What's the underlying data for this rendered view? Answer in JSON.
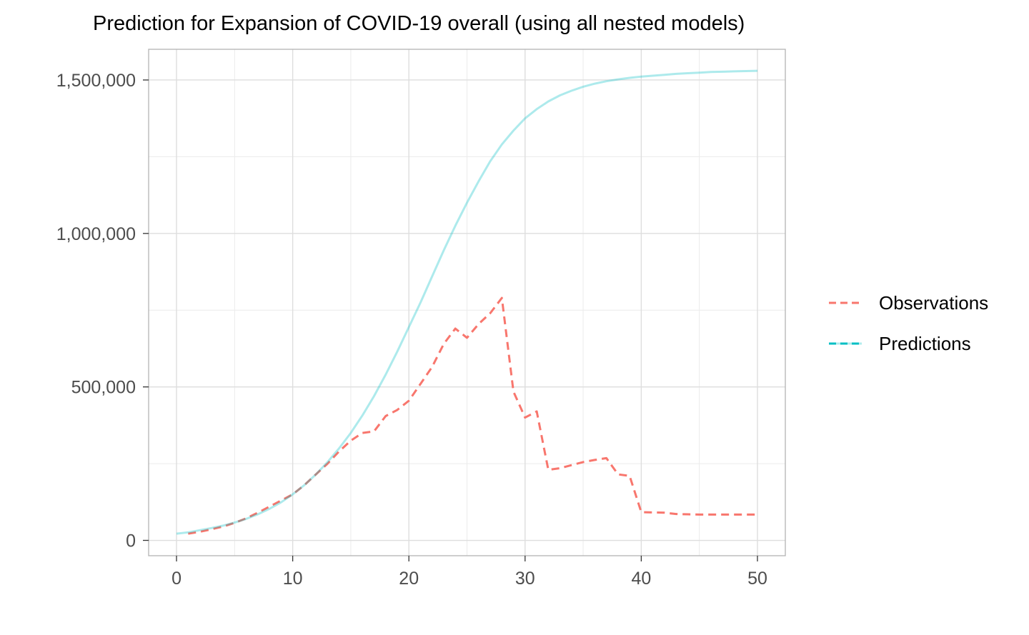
{
  "chart_data": {
    "type": "line",
    "title": "Prediction for Expansion of COVID-19 overall (using all nested models)",
    "xlabel": "",
    "ylabel": "",
    "xlim": [
      -2.4,
      52.4
    ],
    "ylim": [
      -50000,
      1600000
    ],
    "x_ticks": [
      0,
      10,
      20,
      30,
      40,
      50
    ],
    "x_tick_labels": [
      "0",
      "10",
      "20",
      "30",
      "40",
      "50"
    ],
    "y_ticks": [
      0,
      500000,
      1000000,
      1500000
    ],
    "y_tick_labels": [
      "0",
      "500,000",
      "1,000,000",
      "1,500,000"
    ],
    "grid": true,
    "legend_position": "right",
    "series": [
      {
        "name": "Observations",
        "color": "#F8766D",
        "line_style": "dashed",
        "x": [
          1,
          2,
          3,
          4,
          5,
          6,
          7,
          8,
          9,
          10,
          11,
          12,
          13,
          14,
          15,
          16,
          17,
          18,
          19,
          20,
          21,
          22,
          23,
          24,
          25,
          26,
          27,
          28,
          29,
          30,
          31,
          32,
          33,
          34,
          35,
          36,
          37,
          38,
          39,
          40,
          41,
          42,
          43,
          44,
          45,
          46,
          47,
          48,
          49,
          50
        ],
        "y": [
          22000,
          28000,
          36000,
          45000,
          57000,
          72000,
          90000,
          110000,
          130000,
          150000,
          180000,
          215000,
          250000,
          290000,
          325000,
          350000,
          355000,
          405000,
          425000,
          455000,
          510000,
          565000,
          640000,
          690000,
          660000,
          705000,
          740000,
          790000,
          485000,
          400000,
          420000,
          230000,
          235000,
          245000,
          255000,
          262000,
          268000,
          215000,
          210000,
          92000,
          91000,
          90000,
          86000,
          85000,
          84000,
          84000,
          84000,
          84000,
          84000,
          84000
        ]
      },
      {
        "name": "Predictions",
        "color": "#00BFC4",
        "line_style": "solid",
        "x": [
          0,
          1,
          2,
          3,
          4,
          5,
          6,
          7,
          8,
          9,
          10,
          11,
          12,
          13,
          14,
          15,
          16,
          17,
          18,
          19,
          20,
          21,
          22,
          23,
          24,
          25,
          26,
          27,
          28,
          29,
          30,
          31,
          32,
          33,
          34,
          35,
          36,
          37,
          38,
          39,
          40,
          41,
          42,
          43,
          44,
          45,
          46,
          47,
          48,
          49,
          50
        ],
        "y": [
          22000,
          26000,
          33000,
          40000,
          48000,
          58000,
          70000,
          85000,
          103000,
          124000,
          150000,
          180000,
          215000,
          255000,
          300000,
          350000,
          407000,
          470000,
          540000,
          615000,
          695000,
          775000,
          860000,
          945000,
          1025000,
          1100000,
          1170000,
          1235000,
          1290000,
          1335000,
          1375000,
          1405000,
          1430000,
          1450000,
          1465000,
          1478000,
          1488000,
          1496000,
          1502000,
          1507000,
          1511000,
          1514000,
          1517000,
          1520000,
          1522000,
          1524000,
          1526000,
          1527000,
          1528000,
          1529000,
          1530000
        ]
      }
    ]
  }
}
